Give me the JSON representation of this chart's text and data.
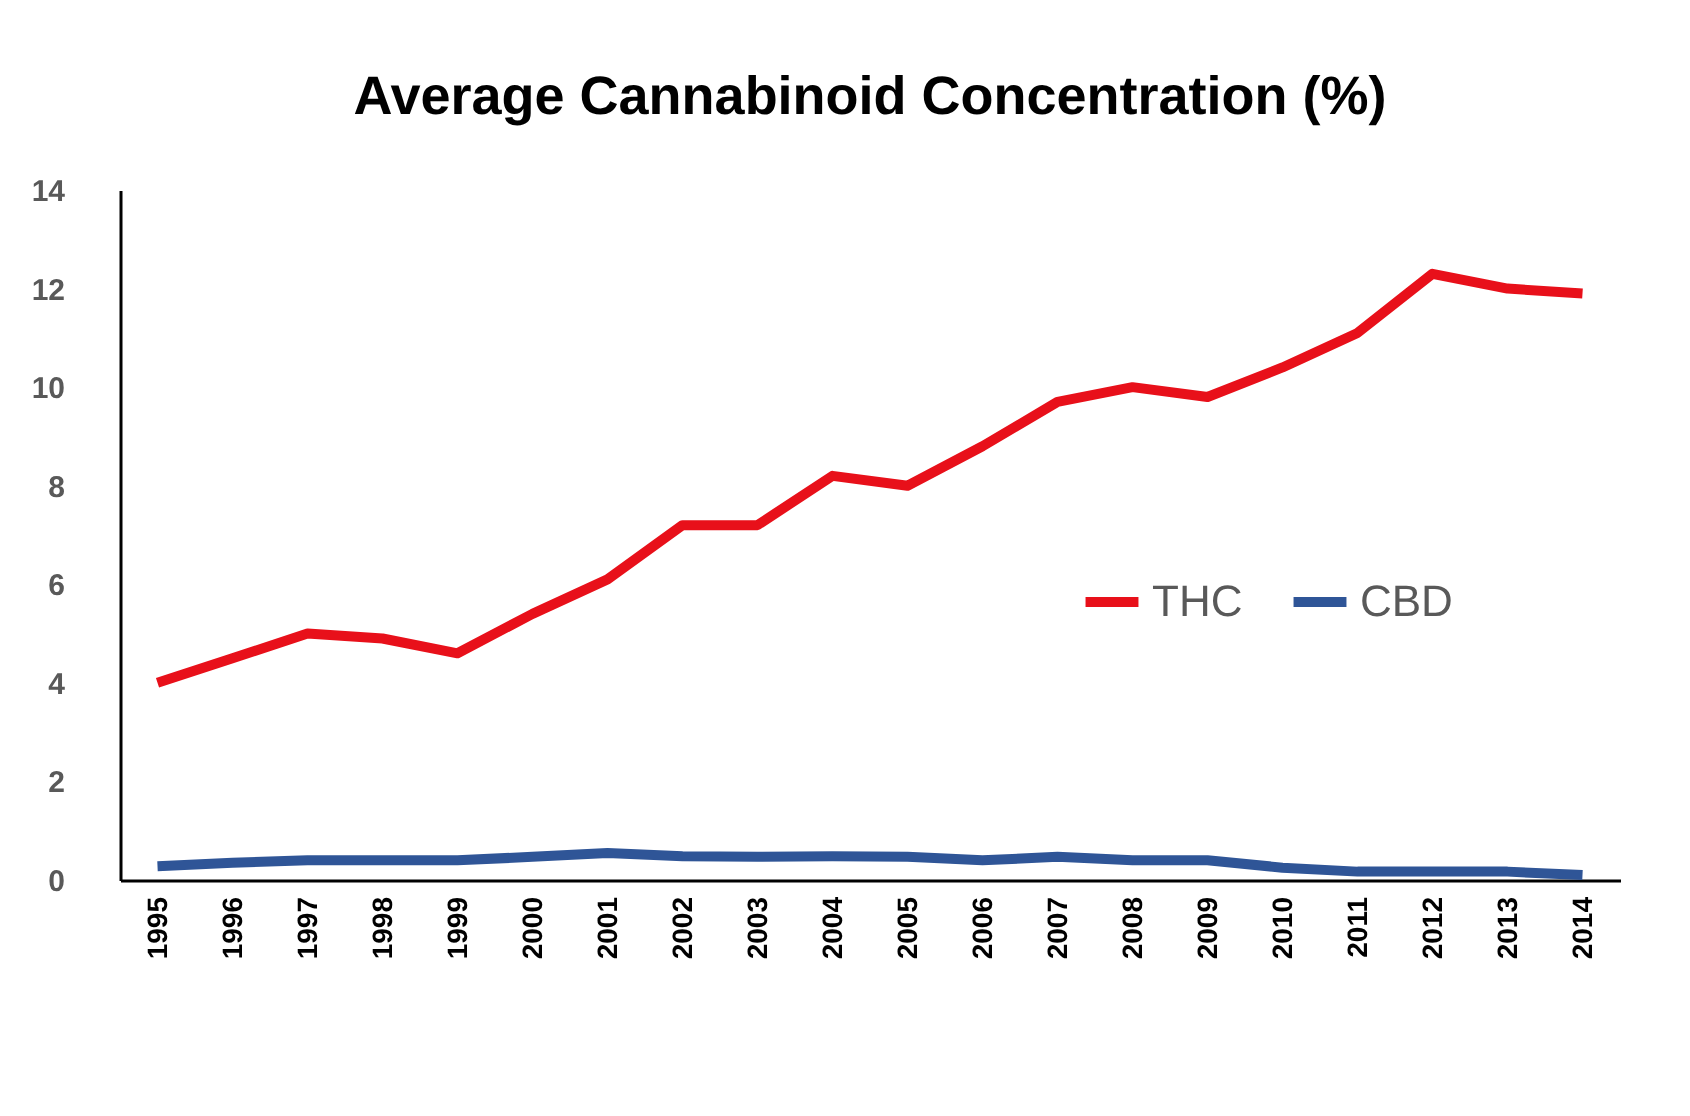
{
  "chart_data": {
    "type": "line",
    "title": "Average Cannabinoid  Concentration  (%)",
    "categories": [
      "1995",
      "1996",
      "1997",
      "1998",
      "1999",
      "2000",
      "2001",
      "2002",
      "2003",
      "2004",
      "2005",
      "2006",
      "2007",
      "2008",
      "2009",
      "2010",
      "2011",
      "2012",
      "2013",
      "2014"
    ],
    "series": [
      {
        "name": "THC",
        "color": "#e8101a",
        "values": [
          4.0,
          4.5,
          5.0,
          4.9,
          4.6,
          5.4,
          6.1,
          7.2,
          7.2,
          8.2,
          8.0,
          8.8,
          9.7,
          10.0,
          9.8,
          10.4,
          11.1,
          12.3,
          12.0,
          11.9
        ]
      },
      {
        "name": "CBD",
        "color": "#2f5597",
        "values": [
          0.28,
          0.35,
          0.4,
          0.4,
          0.4,
          0.47,
          0.55,
          0.48,
          0.47,
          0.48,
          0.47,
          0.4,
          0.47,
          0.4,
          0.4,
          0.25,
          0.17,
          0.17,
          0.17,
          0.1
        ]
      }
    ],
    "ylim": [
      0,
      14
    ],
    "yticks": [
      0,
      2,
      4,
      6,
      8,
      10,
      12,
      14
    ],
    "grid": false,
    "legend": "right",
    "marker": "none",
    "line_style": "solid"
  }
}
